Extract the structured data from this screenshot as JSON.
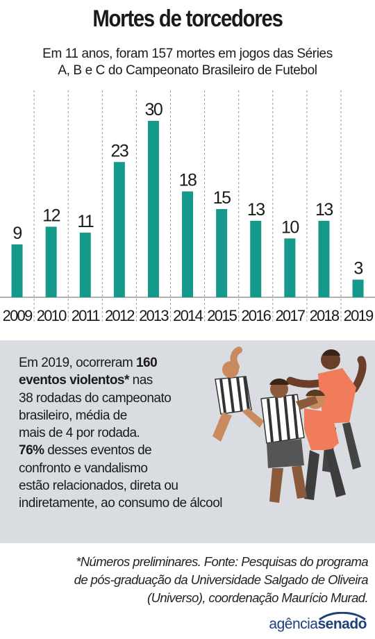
{
  "header": {
    "title": "Mortes de torcedores",
    "subtitle_line1": "Em 11 anos, foram 157 mortes em jogos das Séries",
    "subtitle_line2": "A, B e C do Campeonato Brasileiro de Futebol"
  },
  "chart_data": {
    "type": "bar",
    "categories": [
      "2009",
      "2010",
      "2011",
      "2012",
      "2013",
      "2014",
      "2015",
      "2016",
      "2017",
      "2018",
      "2019"
    ],
    "values": [
      9,
      12,
      11,
      23,
      30,
      18,
      15,
      13,
      10,
      13,
      3
    ],
    "ylim": [
      0,
      30
    ],
    "grid": "vertical dashed separators",
    "bar_color": "#14998b"
  },
  "info": {
    "p1": "Em 2019, ocorreram ",
    "b1": "160",
    "b2": "eventos violentos*",
    "p2": " nas",
    "line3": "38 rodadas do campeonato",
    "line4": "brasileiro, média de",
    "line5": "mais de 4 por rodada.",
    "b3": "76%",
    "p3": " desses eventos de",
    "line7": "confronto e vandalismo",
    "line8": "estão relacionados, direta ou",
    "line9": "indiretamente, ao consumo de álcool"
  },
  "footnote": {
    "line1": "*Números preliminares. Fonte: Pesquisas do programa",
    "line2": "de pós-graduação da Universidade Salgado de Oliveira",
    "line3": "(Universo), coordenação Maurício Murad."
  },
  "logo": {
    "part1": "agência",
    "part2": "senado",
    "color": "#1e3f7a"
  },
  "colors": {
    "bar": "#14998b",
    "info_bg": "#d9dde2",
    "jersey_orange": "#f07c5c",
    "shorts_gray": "#555555"
  }
}
